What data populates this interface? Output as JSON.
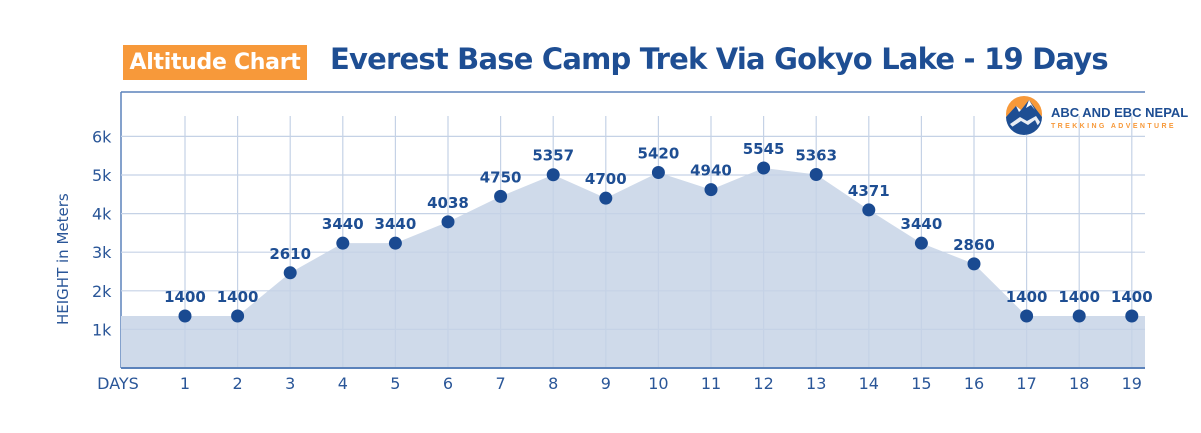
{
  "header": {
    "badge_label": "Altitude Chart",
    "title": "Everest Base Camp Trek Via Gokyo Lake - 19 Days"
  },
  "logo": {
    "name": "ABC AND EBC NEPAL",
    "tagline": "TREKKING ADVENTURE",
    "icon": "mountain-sun-logo-icon"
  },
  "colors": {
    "accent_orange": "#f7993a",
    "brand_blue": "#1e4e93",
    "area_fill": "#cfdaea",
    "grid": "#c5d2e6",
    "dot": "#1a4a91"
  },
  "chart_data": {
    "type": "area",
    "title": "Everest Base Camp Trek Via Gokyo Lake - 19 Days",
    "subtitle": "Altitude Chart",
    "xlabel": "DAYS",
    "ylabel": "HEIGHT in Meters",
    "categories": [
      "1",
      "2",
      "3",
      "4",
      "5",
      "6",
      "7",
      "8",
      "9",
      "10",
      "11",
      "12",
      "13",
      "14",
      "15",
      "16",
      "17",
      "18",
      "19"
    ],
    "values": [
      1400,
      1400,
      2610,
      3440,
      3440,
      4038,
      4750,
      5357,
      4700,
      5420,
      4940,
      5545,
      5363,
      4371,
      3440,
      2860,
      1400,
      1400,
      1400
    ],
    "y_ticks": [
      "1k",
      "2k",
      "3k",
      "4k",
      "5k",
      "6k"
    ],
    "ylim": [
      0,
      7000
    ],
    "grid": true,
    "markers": true,
    "data_labels": true,
    "legend": "none"
  }
}
